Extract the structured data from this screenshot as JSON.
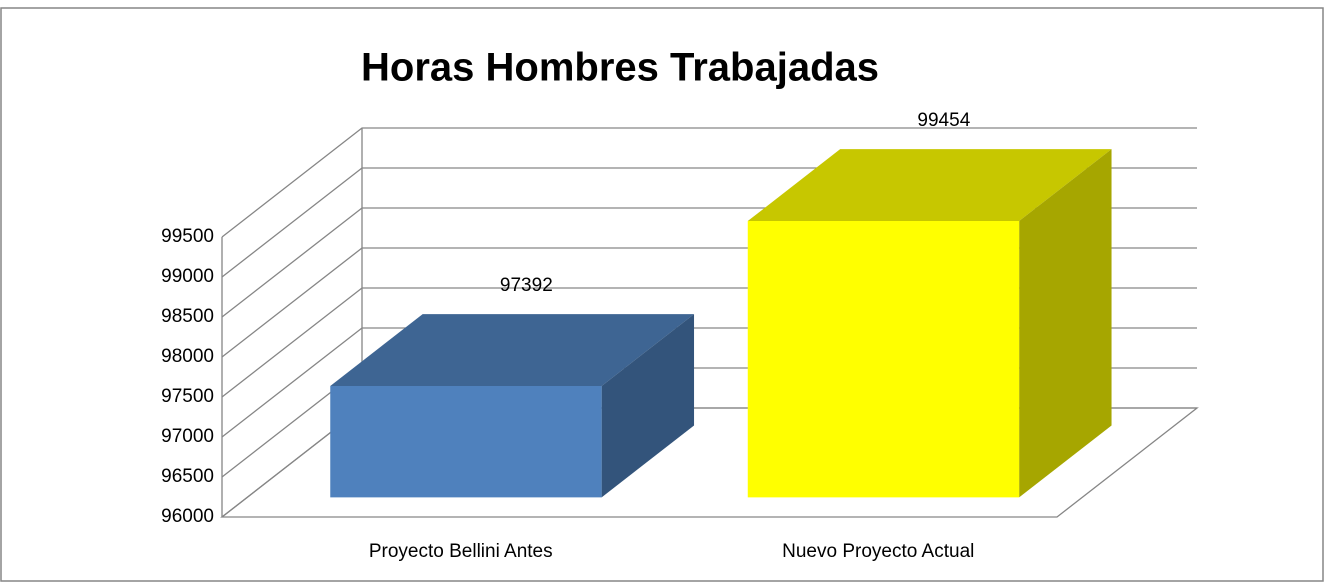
{
  "chart_data": {
    "type": "bar3d",
    "title": "Horas Hombres Trabajadas",
    "categories": [
      "Proyecto Bellini Antes",
      "Nuevo Proyecto Actual"
    ],
    "values": [
      97392,
      99454
    ],
    "colors": [
      "#4f81bd",
      "#ffff00"
    ],
    "ylim": [
      96000,
      99500
    ],
    "yticks": [
      96000,
      96500,
      97000,
      97500,
      98000,
      98500,
      99000,
      99500
    ],
    "grid": true
  }
}
